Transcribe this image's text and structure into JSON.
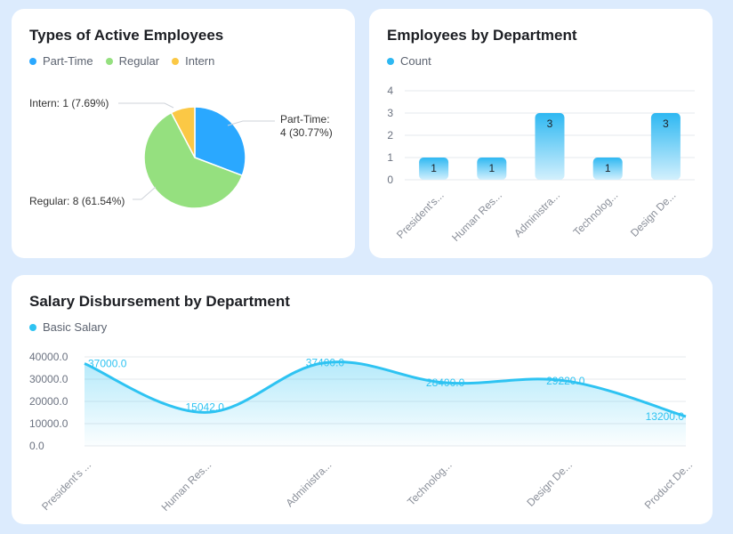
{
  "chart_data": [
    {
      "type": "pie",
      "title": "Types of Active Employees",
      "legend": [
        "Part-Time",
        "Regular",
        "Intern"
      ],
      "colors": [
        "#2aa8ff",
        "#95e07f",
        "#fbc845"
      ],
      "slices": [
        {
          "name": "Part-Time",
          "value": 4,
          "percent": "30.77%",
          "label_line1": "Part-Time:",
          "label_line2": "4 (30.77%)"
        },
        {
          "name": "Regular",
          "value": 8,
          "percent": "61.54%",
          "label": "Regular: 8 (61.54%)"
        },
        {
          "name": "Intern",
          "value": 1,
          "percent": "7.69%",
          "label": "Intern: 1 (7.69%)"
        }
      ]
    },
    {
      "type": "bar",
      "title": "Employees by Department",
      "legend": [
        "Count"
      ],
      "color": "#2eb8f2",
      "categories": [
        "President's...",
        "Human Res...",
        "Administra...",
        "Technolog...",
        "Design De..."
      ],
      "values": [
        1,
        1,
        3,
        1,
        3
      ],
      "ylim": [
        0,
        4
      ],
      "yticks": [
        "0",
        "1",
        "2",
        "3",
        "4"
      ]
    },
    {
      "type": "area",
      "title": "Salary Disbursement by Department",
      "legend": [
        "Basic Salary"
      ],
      "color": "#2ec3f2",
      "categories": [
        "President's ...",
        "Human Res...",
        "Administra...",
        "Technolog...",
        "Design De...",
        "Product De..."
      ],
      "values": [
        37000.0,
        15042.0,
        37400.0,
        28400.0,
        29220.0,
        13200.0
      ],
      "value_labels": [
        "37000.0",
        "15042.0",
        "37400.0",
        "28400.0",
        "29220.0",
        "13200.0"
      ],
      "ylim": [
        0,
        40000
      ],
      "yticks": [
        "0.0",
        "10000.0",
        "20000.0",
        "30000.0",
        "40000.0"
      ]
    }
  ]
}
